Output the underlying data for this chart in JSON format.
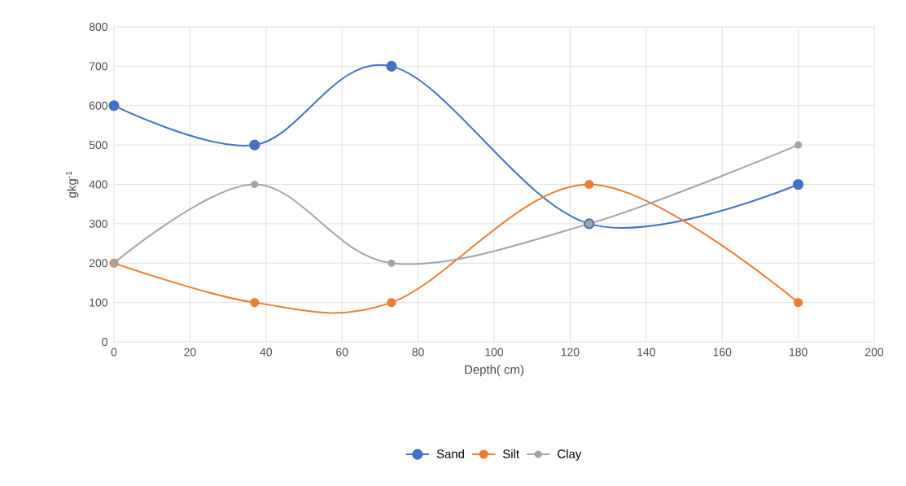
{
  "chart_data": {
    "type": "line",
    "xlabel": "Depth( cm)",
    "ylabel": "gkg$^{-1}$",
    "x": [
      0,
      37,
      73,
      125,
      180
    ],
    "series": [
      {
        "name": "Sand",
        "color": "#4472c4",
        "values": [
          600,
          500,
          700,
          300,
          400
        ]
      },
      {
        "name": "Silt",
        "color": "#ed7d31",
        "values": [
          200,
          100,
          100,
          400,
          100
        ]
      },
      {
        "name": "Clay",
        "color": "#a5a5a5",
        "values": [
          200,
          400,
          200,
          300,
          500
        ]
      }
    ],
    "xlim": [
      0,
      200
    ],
    "ylim": [
      0,
      800
    ],
    "xticks": [
      0,
      20,
      40,
      60,
      80,
      100,
      120,
      140,
      160,
      180,
      200
    ],
    "yticks": [
      0,
      100,
      200,
      300,
      400,
      500,
      600,
      700,
      800
    ],
    "grid": true,
    "legend": "bottom",
    "marker": "circle",
    "line_style": "solid"
  }
}
